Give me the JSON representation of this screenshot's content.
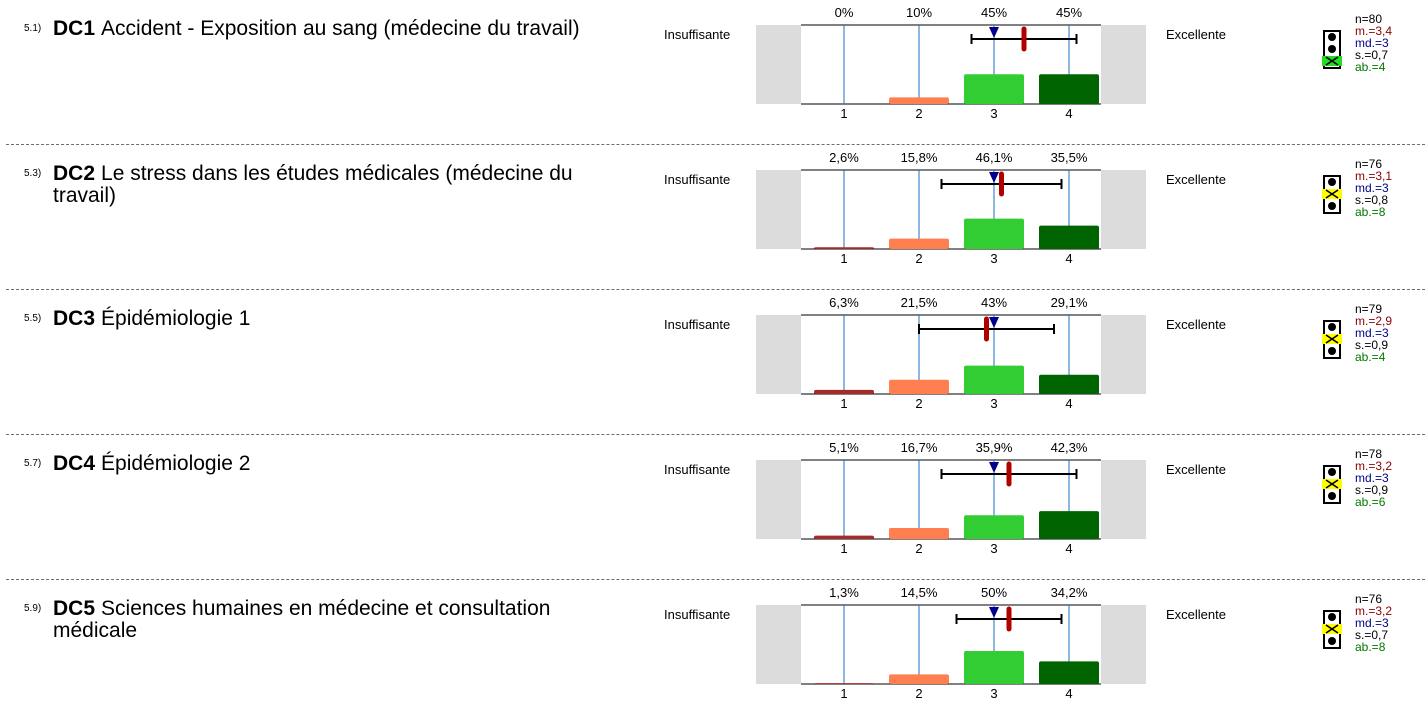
{
  "labels": {
    "low": "Insuffisante",
    "high": "Excellente"
  },
  "scale_points": [
    "1",
    "2",
    "3",
    "4"
  ],
  "colors": {
    "bars": [
      "#a52a2a",
      "#ff7f50",
      "#32cd32",
      "#006400"
    ],
    "mean_marker": "#b00000",
    "median_marker": "#00008b",
    "grid": "#1f6fc4",
    "panel": "#dcdcdc",
    "separator": "#6e6e6e"
  },
  "questions": [
    {
      "num": "5.1)",
      "code": "DC1",
      "title": "Accident - Exposition au sang (médecine du travail)",
      "percents": [
        "0%",
        "10%",
        "45%",
        "45%"
      ],
      "n": "n=80",
      "mean": "m.=3,4",
      "median": "md.=3",
      "sd": "s.=0,7",
      "ab": "ab.=4",
      "signal_color": "green"
    },
    {
      "num": "5.3)",
      "code": "DC2",
      "title": "Le stress dans les études médicales (médecine du travail)",
      "percents": [
        "2,6%",
        "15,8%",
        "46,1%",
        "35,5%"
      ],
      "n": "n=76",
      "mean": "m.=3,1",
      "median": "md.=3",
      "sd": "s.=0,8",
      "ab": "ab.=8",
      "signal_color": "yellow"
    },
    {
      "num": "5.5)",
      "code": "DC3",
      "title": "Épidémiologie 1",
      "percents": [
        "6,3%",
        "21,5%",
        "43%",
        "29,1%"
      ],
      "n": "n=79",
      "mean": "m.=2,9",
      "median": "md.=3",
      "sd": "s.=0,9",
      "ab": "ab.=4",
      "signal_color": "yellow"
    },
    {
      "num": "5.7)",
      "code": "DC4",
      "title": "Épidémiologie 2",
      "percents": [
        "5,1%",
        "16,7%",
        "35,9%",
        "42,3%"
      ],
      "n": "n=78",
      "mean": "m.=3,2",
      "median": "md.=3",
      "sd": "s.=0,9",
      "ab": "ab.=6",
      "signal_color": "yellow"
    },
    {
      "num": "5.9)",
      "code": "DC5",
      "title": "Sciences humaines en médecine et consultation médicale",
      "percents": [
        "1,3%",
        "14,5%",
        "50%",
        "34,2%"
      ],
      "n": "n=76",
      "mean": "m.=3,2",
      "median": "md.=3",
      "sd": "s.=0,7",
      "ab": "ab.=8",
      "signal_color": "yellow"
    }
  ],
  "chart_data": [
    {
      "type": "bar",
      "categories": [
        "1",
        "2",
        "3",
        "4"
      ],
      "values": [
        0,
        10,
        45,
        45
      ],
      "mean": 3.4,
      "median": 3,
      "sd": 0.7,
      "ylim": [
        0,
        100
      ]
    },
    {
      "type": "bar",
      "categories": [
        "1",
        "2",
        "3",
        "4"
      ],
      "values": [
        2.6,
        15.8,
        46.1,
        35.5
      ],
      "mean": 3.1,
      "median": 3,
      "sd": 0.8,
      "ylim": [
        0,
        100
      ]
    },
    {
      "type": "bar",
      "categories": [
        "1",
        "2",
        "3",
        "4"
      ],
      "values": [
        6.3,
        21.5,
        43,
        29.1
      ],
      "mean": 2.9,
      "median": 3,
      "sd": 0.9,
      "ylim": [
        0,
        100
      ]
    },
    {
      "type": "bar",
      "categories": [
        "1",
        "2",
        "3",
        "4"
      ],
      "values": [
        5.1,
        16.7,
        35.9,
        42.3
      ],
      "mean": 3.2,
      "median": 3,
      "sd": 0.9,
      "ylim": [
        0,
        100
      ]
    },
    {
      "type": "bar",
      "categories": [
        "1",
        "2",
        "3",
        "4"
      ],
      "values": [
        1.3,
        14.5,
        50,
        34.2
      ],
      "mean": 3.2,
      "median": 3,
      "sd": 0.7,
      "ylim": [
        0,
        100
      ]
    }
  ]
}
